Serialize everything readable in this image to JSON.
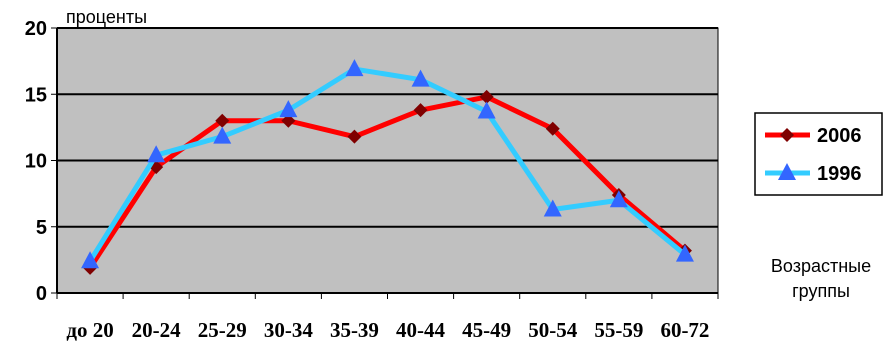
{
  "chart_data": {
    "type": "line",
    "title": "",
    "ylabel": "проценты",
    "xlabel": "Возрастные группы",
    "xlabel_lines": [
      "Возрастные",
      "группы"
    ],
    "categories": [
      "до 20",
      "20-24",
      "25-29",
      "30-34",
      "35-39",
      "40-44",
      "45-49",
      "50-54",
      "55-59",
      "60-72"
    ],
    "ylim": [
      0,
      20
    ],
    "yticks": [
      "0",
      "5",
      "10",
      "15",
      "20"
    ],
    "grid": true,
    "plot_background": "#c0c0c0",
    "legend_position": "right",
    "series": [
      {
        "name": "2006",
        "color": "#ff0000",
        "marker": "diamond",
        "marker_color": "#800000",
        "values": [
          1.9,
          9.5,
          13.0,
          13.0,
          11.8,
          13.8,
          14.8,
          12.4,
          7.4,
          3.2
        ]
      },
      {
        "name": "1996",
        "color": "#33ccff",
        "marker": "triangle",
        "marker_color": "#3366ff",
        "values": [
          2.4,
          10.4,
          11.8,
          13.8,
          16.9,
          16.1,
          13.7,
          6.3,
          7.0,
          2.9
        ]
      }
    ]
  }
}
